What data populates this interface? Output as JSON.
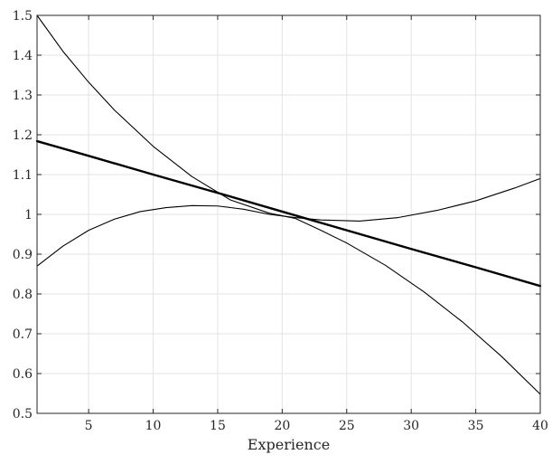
{
  "chart_data": {
    "type": "line",
    "title": "",
    "xlabel": "Experience",
    "ylabel": "",
    "xlim": [
      1,
      40
    ],
    "ylim": [
      0.5,
      1.5
    ],
    "grid": true,
    "legend": "none",
    "xticks": [
      5,
      10,
      15,
      20,
      25,
      30,
      35,
      40
    ],
    "yticks": [
      0.5,
      0.6,
      0.7,
      0.8,
      0.9,
      1,
      1.1,
      1.2,
      1.3,
      1.4,
      1.5
    ],
    "series": [
      {
        "line_style": "thick",
        "color": "#000000",
        "x": [
          1,
          5,
          10,
          15,
          20,
          25,
          30,
          35,
          40
        ],
        "y": [
          1.184,
          1.147,
          1.1,
          1.054,
          1.007,
          0.96,
          0.913,
          0.867,
          0.82
        ]
      },
      {
        "line_style": "thin",
        "color": "#000000",
        "x": [
          1,
          3,
          5,
          7,
          10,
          13,
          16,
          19,
          21,
          23,
          25,
          28,
          31,
          34,
          37,
          40
        ],
        "y": [
          1.5,
          1.41,
          1.332,
          1.262,
          1.171,
          1.095,
          1.036,
          1.003,
          0.99,
          0.96,
          0.928,
          0.872,
          0.805,
          0.729,
          0.643,
          0.548
        ]
      },
      {
        "line_style": "thin",
        "color": "#000000",
        "x": [
          1,
          3,
          5,
          7,
          9,
          11,
          13,
          15,
          17,
          19,
          21,
          23,
          26,
          29,
          32,
          35,
          38,
          40
        ],
        "y": [
          0.87,
          0.92,
          0.96,
          0.988,
          1.007,
          1.017,
          1.022,
          1.021,
          1.013,
          1.0,
          0.992,
          0.986,
          0.983,
          0.992,
          1.01,
          1.034,
          1.066,
          1.09
        ]
      }
    ],
    "colors": {
      "grid": "#e3e3e3",
      "axes": "#262626",
      "series": "#000000"
    }
  }
}
